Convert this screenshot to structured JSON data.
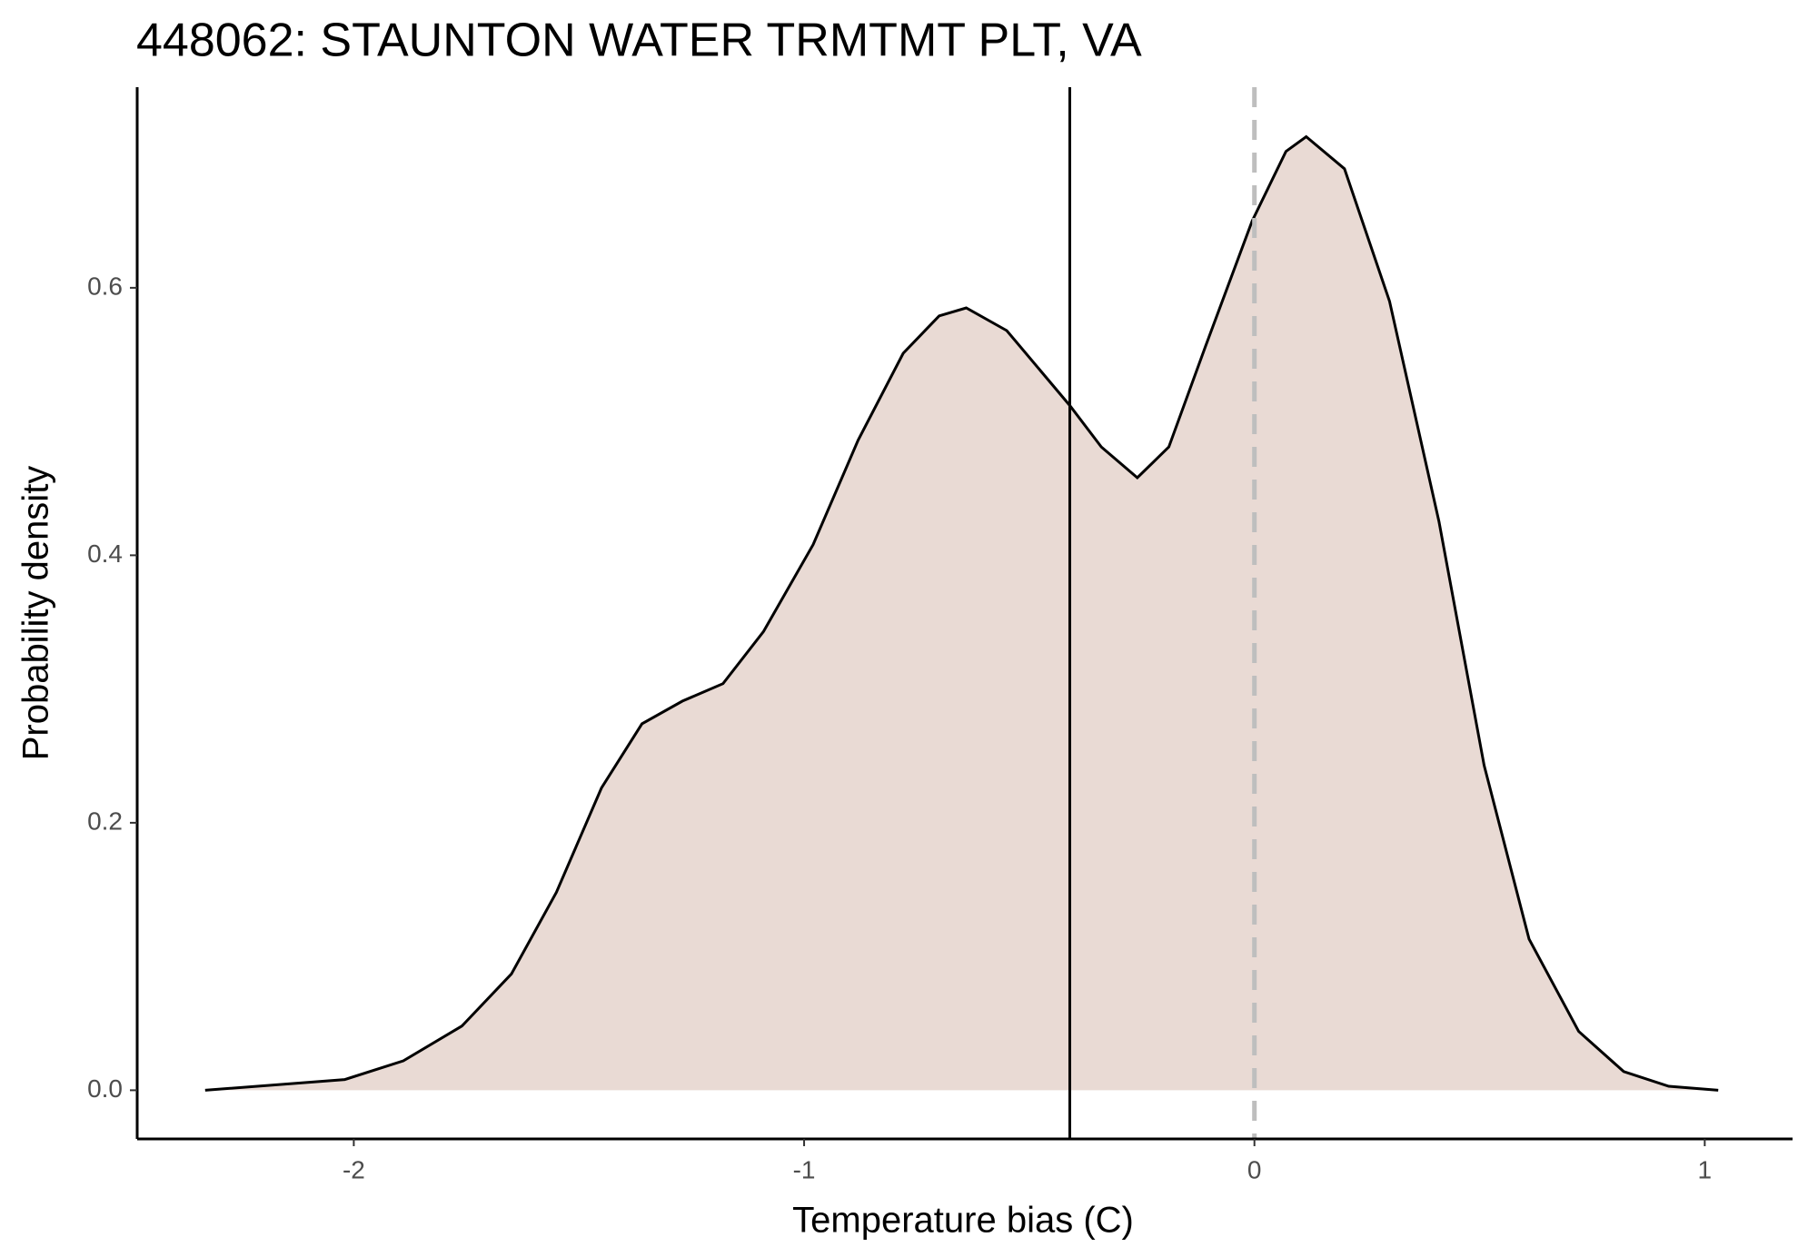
{
  "chart_data": {
    "type": "density",
    "title": "448062: STAUNTON WATER TRMTMT PLT, VA",
    "x_label": "Temperature bias (C)",
    "y_label": "Probability density",
    "x": [
      -2.33,
      -2.02,
      -1.89,
      -1.76,
      -1.65,
      -1.55,
      -1.45,
      -1.36,
      -1.27,
      -1.18,
      -1.09,
      -0.98,
      -0.88,
      -0.78,
      -0.7,
      -0.64,
      -0.55,
      -0.41,
      -0.34,
      -0.26,
      -0.19,
      -0.11,
      -0.005,
      0.07,
      0.115,
      0.2,
      0.3,
      0.41,
      0.51,
      0.61,
      0.72,
      0.82,
      0.92,
      1.03
    ],
    "y": [
      0,
      0.008,
      0.022,
      0.048,
      0.087,
      0.148,
      0.226,
      0.274,
      0.291,
      0.304,
      0.343,
      0.408,
      0.486,
      0.551,
      0.579,
      0.585,
      0.568,
      0.512,
      0.481,
      0.458,
      0.481,
      0.555,
      0.65,
      0.702,
      0.713,
      0.689,
      0.59,
      0.425,
      0.243,
      0.113,
      0.044,
      0.014,
      0.003,
      0
    ],
    "fill_color": "#e9dad4",
    "line_color": "#000000",
    "mean_line": -0.41,
    "mean_line_color": "#000000",
    "zero_line": 0,
    "zero_line_color": "#bebebe",
    "xlim": [
      -2.481,
      1.195
    ],
    "xticks": [
      -2,
      -1,
      0,
      1
    ],
    "ylim": [
      -0.0364,
      0.75
    ],
    "yticks": [
      {
        "value": 0,
        "label": "0.0"
      },
      {
        "value": 0.2,
        "label": "0.2"
      },
      {
        "value": 0.4,
        "label": "0.4"
      },
      {
        "value": 0.6,
        "label": "0.6"
      }
    ]
  }
}
